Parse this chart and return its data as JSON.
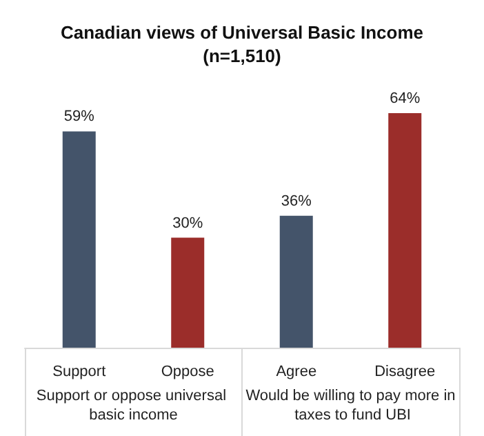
{
  "chart_data": {
    "type": "bar",
    "title": "Canadian views of Universal Basic Income",
    "subtitle": "(n=1,510)",
    "categories": [
      "Support",
      "Oppose",
      "Agree",
      "Disagree"
    ],
    "values": [
      59,
      30,
      36,
      64
    ],
    "colors": [
      "#44546a",
      "#9b2d2a",
      "#44546a",
      "#9b2d2a"
    ],
    "value_labels": [
      "59%",
      "30%",
      "36%",
      "64%"
    ],
    "annotations": [
      "Support or oppose universal basic income",
      "Would be willing to pay more in taxes to fund UBI"
    ]
  }
}
